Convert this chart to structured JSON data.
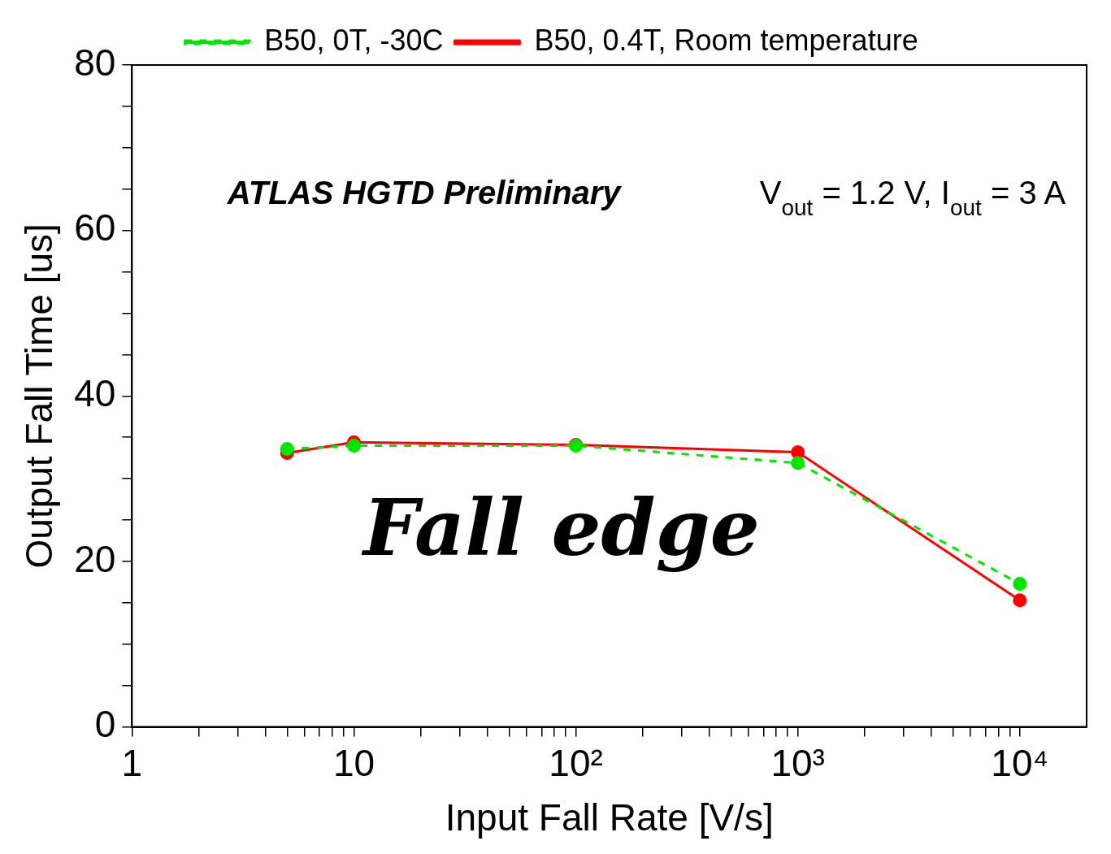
{
  "chart_data": {
    "type": "line",
    "xlabel": "Input Fall Rate [V/s]",
    "ylabel": "Output Fall Time [us]",
    "x": [
      5,
      10,
      100,
      1000,
      10000
    ],
    "series": [
      {
        "name": "B50, 0.4T, Room temperature",
        "color": "#ff0000",
        "line_style": "solid",
        "values": [
          33.1,
          34.4,
          34.1,
          33.2,
          15.3
        ]
      },
      {
        "name": "B50, 0T, -30C",
        "color": "#00e600",
        "line_style": "dashed",
        "values": [
          33.6,
          34.0,
          34.0,
          31.9,
          17.3
        ]
      }
    ],
    "log": "x",
    "xlim": [
      1,
      20000
    ],
    "xticks": [
      1,
      {
        "value": 2,
        "label": null
      },
      {
        "value": 3,
        "label": null
      },
      {
        "value": 4,
        "label": null
      },
      {
        "value": 5,
        "label": null
      },
      {
        "value": 6,
        "label": null
      },
      {
        "value": 7,
        "label": null
      },
      {
        "value": 8,
        "label": null
      },
      {
        "value": 9,
        "label": null
      },
      10,
      {
        "value": 20,
        "label": null
      },
      {
        "value": 30,
        "label": null
      },
      {
        "value": 40,
        "label": null
      },
      {
        "value": 50,
        "label": null
      },
      {
        "value": 60,
        "label": null
      },
      {
        "value": 70,
        "label": null
      },
      {
        "value": 80,
        "label": null
      },
      {
        "value": 90,
        "label": null
      },
      {
        "value": 100,
        "label": "10²"
      },
      {
        "value": 200,
        "label": null
      },
      {
        "value": 300,
        "label": null
      },
      {
        "value": 400,
        "label": null
      },
      {
        "value": 500,
        "label": null
      },
      {
        "value": 600,
        "label": null
      },
      {
        "value": 700,
        "label": null
      },
      {
        "value": 800,
        "label": null
      },
      {
        "value": 900,
        "label": null
      },
      {
        "value": 1000,
        "label": "10³"
      },
      {
        "value": 2000,
        "label": null
      },
      {
        "value": 3000,
        "label": null
      },
      {
        "value": 4000,
        "label": null
      },
      {
        "value": 5000,
        "label": null
      },
      {
        "value": 6000,
        "label": null
      },
      {
        "value": 7000,
        "label": null
      },
      {
        "value": 8000,
        "label": null
      },
      {
        "value": 9000,
        "label": null
      },
      {
        "value": 10000,
        "label": "10⁴"
      }
    ],
    "ylim": [
      0,
      80
    ],
    "yticks": [
      0,
      {
        "value": 5,
        "label": null
      },
      {
        "value": 10,
        "label": null
      },
      {
        "value": 15,
        "label": null
      },
      20,
      {
        "value": 25,
        "label": null
      },
      {
        "value": 30,
        "label": null
      },
      {
        "value": 35,
        "label": null
      },
      40,
      {
        "value": 45,
        "label": null
      },
      {
        "value": 50,
        "label": null
      },
      {
        "value": 55,
        "label": null
      },
      60,
      {
        "value": 65,
        "label": null
      },
      {
        "value": 70,
        "label": null
      },
      {
        "value": 75,
        "label": null
      },
      80
    ],
    "annotations": [
      "ATLAS HGTD Preliminary",
      "V$_{out}$ = 1.2 V, I$_{out}$ = 3 A",
      "Fall edge"
    ],
    "grid": false,
    "legend": "top",
    "marker": "circle"
  }
}
